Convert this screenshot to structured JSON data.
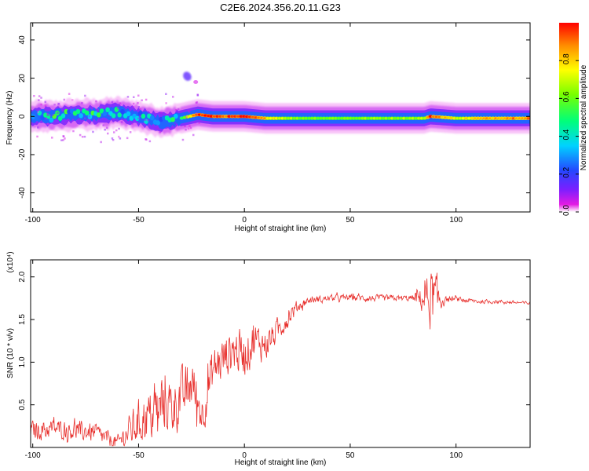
{
  "figure": {
    "title": "C2E6.2024.356.20.11.G23",
    "colors": {
      "snr_line": "#e8312e",
      "colorbar": [
        "#e31ae3",
        "#7a1fff",
        "#2448ff",
        "#00d2ff",
        "#00ff7a",
        "#77ff00",
        "#ffff00",
        "#ff8c00",
        "#ff0000"
      ]
    }
  },
  "chart_data": [
    {
      "type": "heatmap",
      "title": "C2E6.2024.356.20.11.G23",
      "xlabel": "Height of straight line (km)",
      "ylabel": "Frequency (Hz)",
      "xlim": [
        -101,
        135
      ],
      "ylim": [
        -50,
        49
      ],
      "xticks": [
        -100,
        -50,
        0,
        50,
        100
      ],
      "xtick_labels": [
        "-100",
        "-50",
        "0",
        "50",
        "100"
      ],
      "yticks": [
        -40,
        -20,
        0,
        20,
        40
      ],
      "ytick_labels": [
        "-40",
        "-20",
        "0",
        "20",
        "40"
      ],
      "colorbar": {
        "label": "Normalized spectral amplitude",
        "range": [
          0,
          1
        ],
        "ticks": [
          0.0,
          0.2,
          0.4,
          0.6,
          0.8
        ],
        "tick_labels": [
          "0.0",
          "0.2",
          "0.4",
          "0.6",
          "0.8"
        ],
        "colormap": "rainbow_violet_to_red"
      },
      "ridge": [
        {
          "x": -100,
          "f": 0,
          "amp": 0.35
        },
        {
          "x": -90,
          "f": 0,
          "amp": 0.45
        },
        {
          "x": -80,
          "f": 1,
          "amp": 0.45
        },
        {
          "x": -70,
          "f": 1,
          "amp": 0.45
        },
        {
          "x": -60,
          "f": 2,
          "amp": 0.4
        },
        {
          "x": -50,
          "f": 0,
          "amp": 0.4
        },
        {
          "x": -40,
          "f": -3,
          "amp": 0.35
        },
        {
          "x": -30,
          "f": -1,
          "amp": 0.45
        },
        {
          "x": -22,
          "f": 1,
          "amp": 0.9
        },
        {
          "x": -15,
          "f": 0,
          "amp": 0.9
        },
        {
          "x": -5,
          "f": 0,
          "amp": 0.85
        },
        {
          "x": 0,
          "f": 0,
          "amp": 0.9
        },
        {
          "x": 10,
          "f": -1,
          "amp": 0.75
        },
        {
          "x": 25,
          "f": -1,
          "amp": 0.55
        },
        {
          "x": 50,
          "f": -1,
          "amp": 0.55
        },
        {
          "x": 85,
          "f": -1,
          "amp": 0.6
        },
        {
          "x": 88,
          "f": 0,
          "amp": 0.9
        },
        {
          "x": 100,
          "f": -1,
          "amp": 0.65
        },
        {
          "x": 120,
          "f": -1,
          "amp": 0.8
        },
        {
          "x": 135,
          "f": -1,
          "amp": 0.85
        }
      ],
      "side_blob": {
        "x": -27,
        "f": 21,
        "amp": 0.15
      }
    },
    {
      "type": "line",
      "xlabel": "Height of straight line (km)",
      "ylabel": "SNR (10 * v/v)",
      "y_scale_note": "(x10⁴)",
      "xlim": [
        -101,
        135
      ],
      "ylim": [
        0,
        22000
      ],
      "xticks": [
        -100,
        -50,
        0,
        50,
        100
      ],
      "xtick_labels": [
        "-100",
        "-50",
        "0",
        "50",
        "100"
      ],
      "yticks": [
        5000,
        10000,
        15000,
        20000
      ],
      "ytick_labels": [
        "0.5",
        "1.0",
        "1.5",
        "2.0"
      ],
      "series": [
        {
          "trend": [
            [
              -101,
              2000
            ],
            [
              -90,
              2200
            ],
            [
              -80,
              2000
            ],
            [
              -70,
              1700
            ],
            [
              -65,
              1000
            ],
            [
              -60,
              500
            ],
            [
              -50,
              3000
            ],
            [
              -40,
              4500
            ],
            [
              -30,
              5500
            ],
            [
              -25,
              7500
            ],
            [
              -20,
              4000
            ],
            [
              -15,
              9000
            ],
            [
              -10,
              10500
            ],
            [
              -5,
              11500
            ],
            [
              0,
              11000
            ],
            [
              5,
              12500
            ],
            [
              10,
              12000
            ],
            [
              15,
              13500
            ],
            [
              20,
              15000
            ],
            [
              25,
              16500
            ],
            [
              30,
              17200
            ],
            [
              40,
              17500
            ],
            [
              50,
              17600
            ],
            [
              60,
              17500
            ],
            [
              70,
              17500
            ],
            [
              80,
              17500
            ],
            [
              85,
              17400
            ],
            [
              88,
              17600
            ],
            [
              92,
              17400
            ],
            [
              100,
              17400
            ],
            [
              110,
              17100
            ],
            [
              120,
              17100
            ],
            [
              135,
              16900
            ]
          ],
          "noise_amplitude": [
            [
              -101,
              1500
            ],
            [
              -70,
              1500
            ],
            [
              -60,
              1200
            ],
            [
              -50,
              3500
            ],
            [
              -30,
              4500
            ],
            [
              -20,
              3500
            ],
            [
              0,
              3500
            ],
            [
              20,
              1500
            ],
            [
              30,
              500
            ],
            [
              80,
              500
            ],
            [
              85,
              2500
            ],
            [
              88,
              5000
            ],
            [
              92,
              3000
            ],
            [
              95,
              400
            ],
            [
              135,
              250
            ]
          ]
        }
      ]
    }
  ]
}
